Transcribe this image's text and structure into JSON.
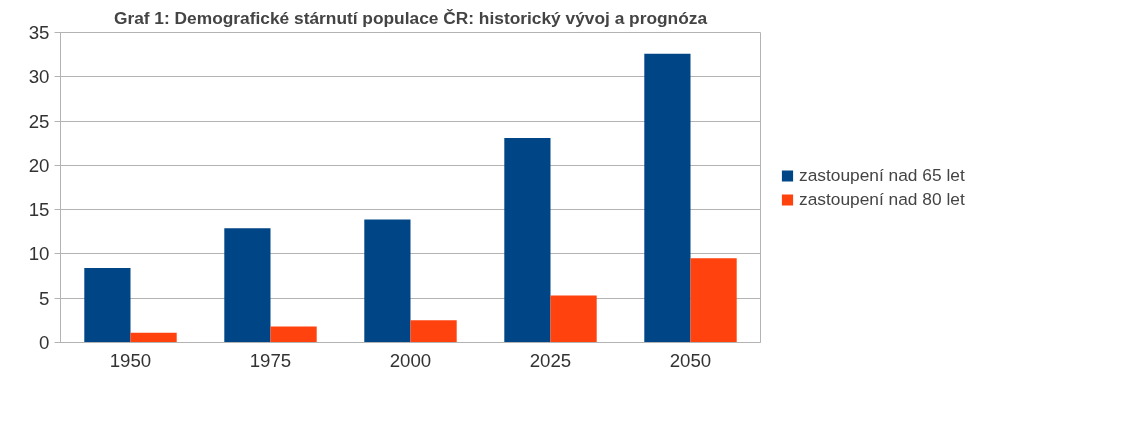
{
  "chart_data": {
    "type": "bar",
    "title": "Graf 1: Demografické stárnutí populace ČR: historický vývoj a prognóza",
    "categories": [
      "1950",
      "1975",
      "2000",
      "2025",
      "2050"
    ],
    "series": [
      {
        "name": "zastoupení nad 65 let",
        "color": "#004586",
        "values": [
          8.4,
          12.9,
          13.9,
          23.1,
          32.6
        ]
      },
      {
        "name": "zastoupení nad 80 let",
        "color": "#ff420e",
        "values": [
          1.1,
          1.8,
          2.5,
          5.3,
          9.5
        ]
      }
    ],
    "ylim": [
      0,
      35
    ],
    "yticks": [
      0,
      5,
      10,
      15,
      20,
      25,
      30,
      35
    ],
    "grid": "y",
    "legend": "right"
  }
}
